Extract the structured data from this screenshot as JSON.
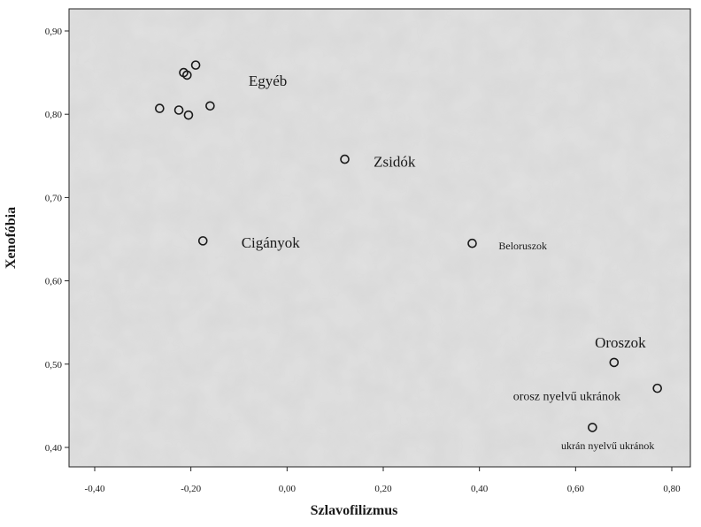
{
  "chart_data": {
    "type": "scatter",
    "title": "",
    "xlabel": "Szlavofilizmus",
    "ylabel": "Xenofóbia",
    "xlim": [
      -0.5,
      0.85
    ],
    "ylim": [
      0.37,
      0.92
    ],
    "x_ticks": [
      -0.4,
      -0.2,
      0.0,
      0.2,
      0.4,
      0.6,
      0.8
    ],
    "x_tick_labels": [
      "-0,40",
      "-0,20",
      "0,00",
      "0,20",
      "0,40",
      "0,60",
      "0,80"
    ],
    "y_ticks": [
      0.4,
      0.5,
      0.6,
      0.7,
      0.8,
      0.9
    ],
    "y_tick_labels": [
      "0,40",
      "0,50",
      "0,60",
      "0,70",
      "0,80",
      "0,90"
    ],
    "grid": false,
    "points": [
      {
        "x": -0.265,
        "y": 0.807
      },
      {
        "x": -0.225,
        "y": 0.805
      },
      {
        "x": -0.205,
        "y": 0.799
      },
      {
        "x": -0.16,
        "y": 0.81
      },
      {
        "x": -0.215,
        "y": 0.85
      },
      {
        "x": -0.208,
        "y": 0.847
      },
      {
        "x": -0.19,
        "y": 0.859
      },
      {
        "x": 0.12,
        "y": 0.746
      },
      {
        "x": -0.175,
        "y": 0.648
      },
      {
        "x": 0.385,
        "y": 0.645
      },
      {
        "x": 0.68,
        "y": 0.502
      },
      {
        "x": 0.77,
        "y": 0.471
      },
      {
        "x": 0.635,
        "y": 0.424
      }
    ],
    "annotations": [
      {
        "text": "Egyéb",
        "x": -0.08,
        "y": 0.834,
        "size": "large"
      },
      {
        "text": "Zsidók",
        "x": 0.18,
        "y": 0.737,
        "size": "large"
      },
      {
        "text": "Cigányok",
        "x": -0.095,
        "y": 0.64,
        "size": "large"
      },
      {
        "text": "Beloruszok",
        "x": 0.44,
        "y": 0.638,
        "size": "small"
      },
      {
        "text": "Oroszok",
        "x": 0.64,
        "y": 0.52,
        "size": "large"
      },
      {
        "text": "orosz nyelvű ukránok",
        "x": 0.47,
        "y": 0.457,
        "size": "medium"
      },
      {
        "text": "ukrán nyelvű ukránok",
        "x": 0.57,
        "y": 0.398,
        "size": "small"
      }
    ]
  }
}
